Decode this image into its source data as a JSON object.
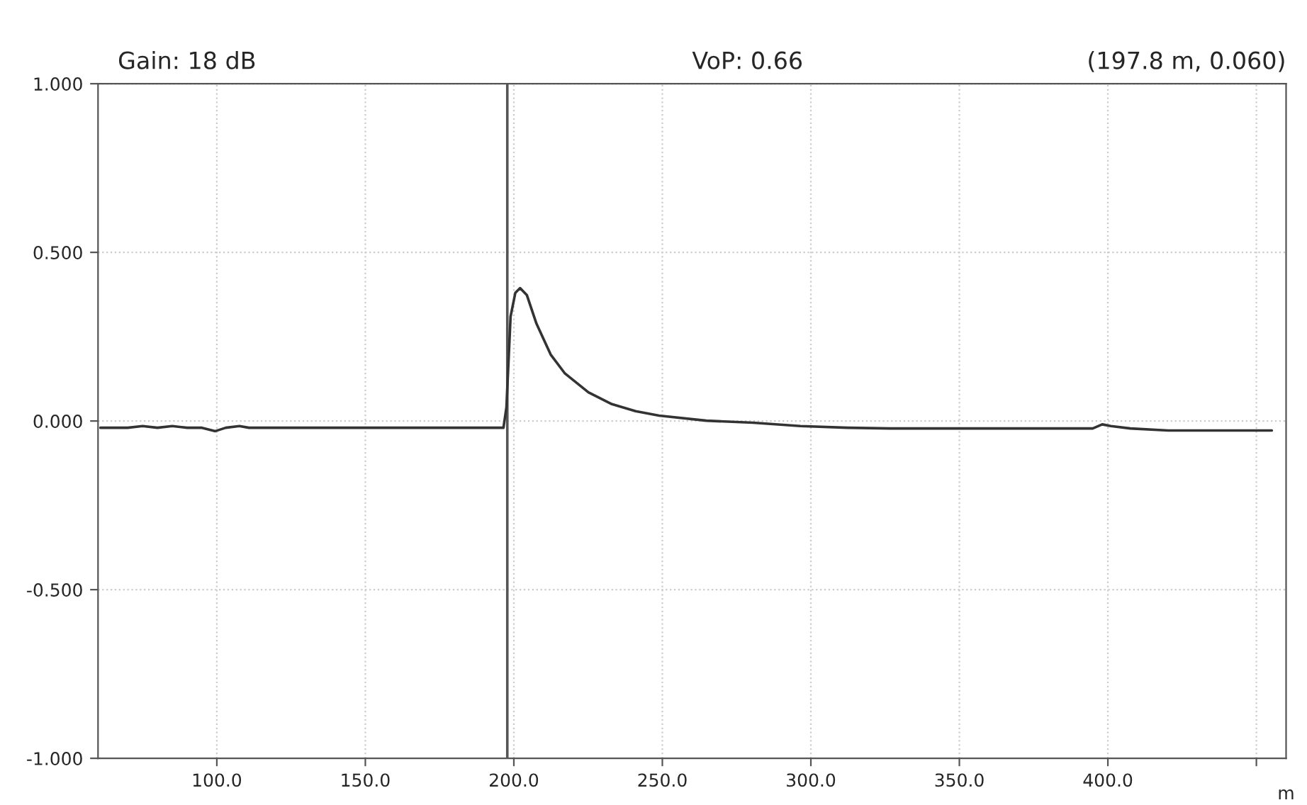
{
  "chart_data": {
    "type": "line",
    "annotations": [
      "Gain: 18 dB",
      "VoP: 0.66",
      "(197.8 m, 0.060)"
    ],
    "xlabel": "m",
    "series": [
      {
        "color": "#333333",
        "x": [
          60.8,
          70,
          75,
          80,
          85,
          90,
          95,
          99.5,
          103,
          107.6,
          110.8,
          120,
          150,
          180,
          195.7,
          196.5,
          197.5,
          198.9,
          200.5,
          202.1,
          204.4,
          207.6,
          212.4,
          217.1,
          225.1,
          233.0,
          241,
          248.9,
          264.8,
          280.5,
          296.5,
          312.4,
          326.7,
          350,
          394.9,
          398.1,
          401,
          407.6,
          420.3,
          455.2
        ],
        "values": [
          -0.02,
          -0.02,
          -0.015,
          -0.02,
          -0.015,
          -0.02,
          -0.02,
          -0.03,
          -0.02,
          -0.015,
          -0.02,
          -0.02,
          -0.02,
          -0.02,
          -0.02,
          -0.02,
          0.04,
          0.31,
          0.38,
          0.394,
          0.373,
          0.289,
          0.197,
          0.142,
          0.085,
          0.05,
          0.029,
          0.016,
          0.001,
          -0.005,
          -0.015,
          -0.02,
          -0.022,
          -0.022,
          -0.022,
          -0.01,
          -0.015,
          -0.022,
          -0.028,
          -0.028
        ]
      }
    ],
    "xlim": [
      60,
      460
    ],
    "xticks": [
      {
        "value": 100,
        "label": "100.0"
      },
      {
        "value": 150,
        "label": "150.0"
      },
      {
        "value": 200,
        "label": "200.0"
      },
      {
        "value": 250,
        "label": "250.0"
      },
      {
        "value": 300,
        "label": "300.0"
      },
      {
        "value": 350,
        "label": "350.0"
      },
      {
        "value": 400,
        "label": "400.0"
      },
      {
        "value": 450,
        "label": null
      }
    ],
    "ylim": [
      -1,
      1
    ],
    "yticks": [
      {
        "value": -1,
        "label": "-1.000"
      },
      {
        "value": -0.5,
        "label": "-0.500"
      },
      {
        "value": 0,
        "label": "0.000"
      },
      {
        "value": 0.5,
        "label": "0.500"
      },
      {
        "value": 1,
        "label": "1.000"
      }
    ],
    "ref_lines": [
      {
        "axis": "x",
        "value": 197.8,
        "color": "#555555"
      }
    ],
    "grid": true,
    "line_style": "solid"
  }
}
